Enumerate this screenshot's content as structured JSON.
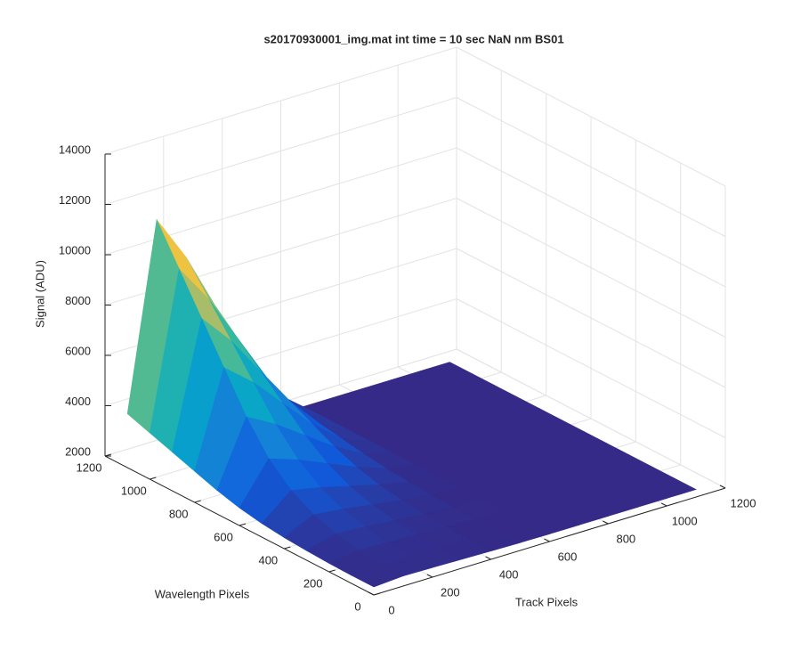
{
  "chart_data": {
    "type": "surface",
    "title": "s20170930001_img.mat int time = 10 sec  NaN nm BS01",
    "xlabel": "Track Pixels",
    "ylabel": "Wavelength Pixels",
    "zlabel": "Signal (ADU)",
    "x": [
      0,
      100,
      200,
      300,
      400,
      500,
      600,
      700,
      800,
      900,
      1000,
      1100
    ],
    "y": [
      0,
      100,
      200,
      300,
      400,
      500,
      600,
      700,
      800,
      900,
      1000,
      1100
    ],
    "z": [
      [
        2320,
        2320,
        2340,
        2380,
        2440,
        2540,
        2700,
        2940,
        3240,
        3540,
        3840,
        4140
      ],
      [
        2400,
        2400,
        2500,
        2700,
        3000,
        3500,
        4300,
        5500,
        7000,
        8500,
        10000,
        11500
      ],
      [
        2380,
        2380,
        2460,
        2620,
        2860,
        3260,
        3900,
        4860,
        6060,
        7260,
        8460,
        9660
      ],
      [
        2355,
        2355,
        2410,
        2520,
        2685,
        2960,
        3400,
        4060,
        4885,
        5710,
        6535,
        7360
      ],
      [
        2330,
        2330,
        2360,
        2420,
        2510,
        2660,
        2900,
        3260,
        3710,
        4160,
        4610,
        5060
      ],
      [
        2310,
        2310,
        2320,
        2340,
        2370,
        2420,
        2500,
        2620,
        2770,
        2920,
        3070,
        3220
      ],
      [
        2300,
        2300,
        2300,
        2300,
        2300,
        2300,
        2300,
        2300,
        2300,
        2300,
        2300,
        2300
      ],
      [
        2300,
        2300,
        2300,
        2300,
        2300,
        2300,
        2300,
        2300,
        2300,
        2300,
        2300,
        2300
      ],
      [
        2300,
        2300,
        2300,
        2300,
        2300,
        2300,
        2300,
        2300,
        2300,
        2300,
        2300,
        2300
      ],
      [
        2300,
        2300,
        2300,
        2300,
        2300,
        2300,
        2300,
        2300,
        2300,
        2300,
        2300,
        2300
      ],
      [
        2300,
        2300,
        2300,
        2300,
        2300,
        2300,
        2300,
        2300,
        2300,
        2300,
        2300,
        2300
      ],
      [
        2300,
        2300,
        2300,
        2300,
        2300,
        2300,
        2300,
        2300,
        2300,
        2300,
        2300,
        2300
      ]
    ],
    "xlim": [
      0,
      1200
    ],
    "ylim": [
      0,
      1200
    ],
    "zlim": [
      2000,
      14000
    ],
    "xticks": [
      0,
      200,
      400,
      600,
      800,
      1000,
      1200
    ],
    "yticks": [
      0,
      200,
      400,
      600,
      800,
      1000,
      1200
    ],
    "zticks": [
      2000,
      4000,
      6000,
      8000,
      10000,
      12000,
      14000
    ],
    "grid": true,
    "colormap": [
      "#352a87",
      "#0f5cdd",
      "#1481d6",
      "#06a4ca",
      "#2eb7a4",
      "#87bf77",
      "#d1bb59",
      "#fec832",
      "#f9fb0e"
    ]
  }
}
